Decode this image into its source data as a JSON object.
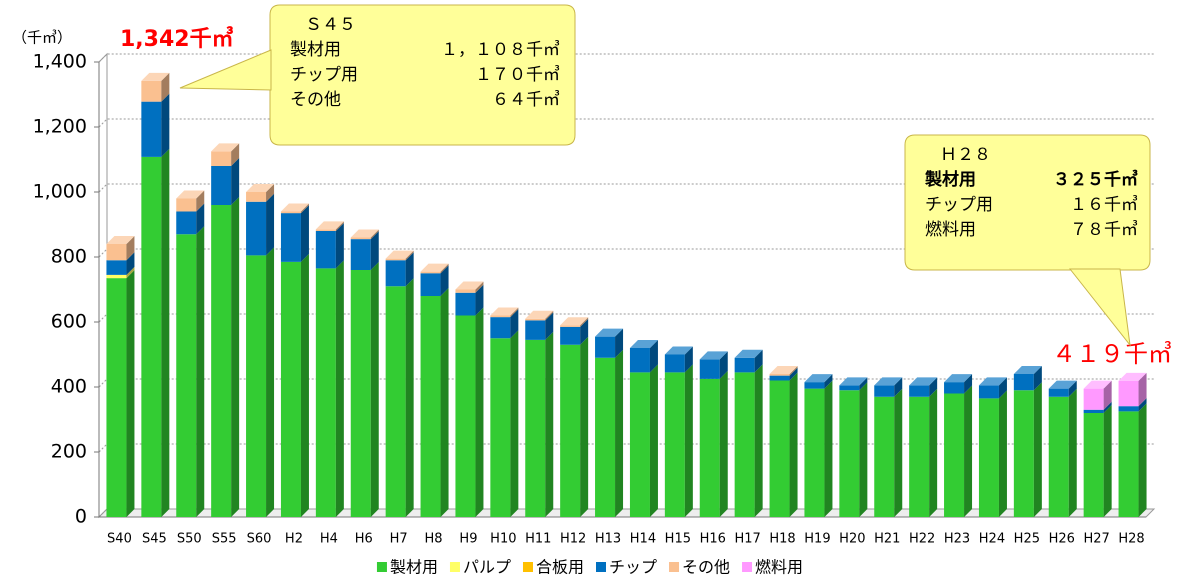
{
  "chart_data": {
    "type": "bar",
    "stacked": true,
    "y_axis_label": "（千㎥）",
    "categories": [
      "S40",
      "S45",
      "S50",
      "S55",
      "S60",
      "H2",
      "H4",
      "H6",
      "H7",
      "H8",
      "H9",
      "H10",
      "H11",
      "H12",
      "H13",
      "H14",
      "H15",
      "H16",
      "H17",
      "H18",
      "H19",
      "H20",
      "H21",
      "H22",
      "H23",
      "H24",
      "H25",
      "H26",
      "H27",
      "H28"
    ],
    "series": [
      {
        "name": "製材用",
        "color": "#33cc33",
        "values": [
          735,
          1108,
          870,
          960,
          805,
          785,
          765,
          760,
          710,
          680,
          620,
          550,
          545,
          530,
          490,
          445,
          445,
          425,
          445,
          420,
          395,
          390,
          370,
          370,
          380,
          365,
          390,
          370,
          320,
          325
        ]
      },
      {
        "name": "パルプ",
        "color": "#ffff66",
        "values": [
          10,
          0,
          0,
          0,
          0,
          0,
          0,
          0,
          0,
          0,
          0,
          0,
          0,
          0,
          0,
          0,
          0,
          0,
          0,
          0,
          0,
          0,
          0,
          0,
          0,
          0,
          0,
          0,
          0,
          0
        ]
      },
      {
        "name": "合板用",
        "color": "#ffc000",
        "values": [
          0,
          0,
          0,
          0,
          0,
          0,
          0,
          0,
          0,
          0,
          0,
          0,
          0,
          0,
          0,
          0,
          0,
          0,
          0,
          0,
          0,
          0,
          0,
          0,
          0,
          0,
          0,
          0,
          0,
          0
        ]
      },
      {
        "name": "チップ",
        "color": "#0070c0",
        "values": [
          45,
          170,
          70,
          120,
          165,
          150,
          115,
          95,
          80,
          70,
          70,
          65,
          60,
          55,
          65,
          75,
          55,
          60,
          45,
          15,
          20,
          15,
          35,
          35,
          35,
          40,
          50,
          25,
          10,
          16
        ]
      },
      {
        "name": "その他",
        "color": "#fac090",
        "values": [
          50,
          64,
          40,
          45,
          30,
          5,
          5,
          5,
          5,
          5,
          10,
          5,
          5,
          5,
          0,
          0,
          0,
          0,
          0,
          5,
          0,
          0,
          0,
          0,
          0,
          0,
          0,
          0,
          0,
          0
        ]
      },
      {
        "name": "燃料用",
        "color": "#ff99ff",
        "values": [
          0,
          0,
          0,
          0,
          0,
          0,
          0,
          0,
          0,
          0,
          0,
          0,
          0,
          0,
          0,
          0,
          0,
          0,
          0,
          0,
          0,
          0,
          0,
          0,
          0,
          0,
          0,
          0,
          65,
          78
        ]
      }
    ],
    "ylim": [
      0,
      1400
    ],
    "yticks": [
      0,
      200,
      400,
      600,
      800,
      {
        "value": 1000,
        "label": "1,000"
      },
      {
        "value": 1200,
        "label": "1,200"
      },
      {
        "value": 1400,
        "label": "1,400"
      }
    ],
    "grid": true,
    "legend": "bottom",
    "annotations": [
      "1,342千㎥",
      "４１９千㎥"
    ],
    "callouts": [
      {
        "title": "Ｓ４５",
        "rows": [
          [
            "製材用",
            "１，１０８千㎥"
          ],
          [
            "チップ用",
            "１７０千㎥"
          ],
          [
            "その他",
            "６４千㎥"
          ]
        ]
      },
      {
        "title": "Ｈ２８",
        "rows": [
          [
            "製材用",
            "３２５千㎥"
          ],
          [
            "チップ用",
            "１６千㎥"
          ],
          [
            "燃料用",
            "７８千㎥"
          ]
        ]
      }
    ]
  }
}
